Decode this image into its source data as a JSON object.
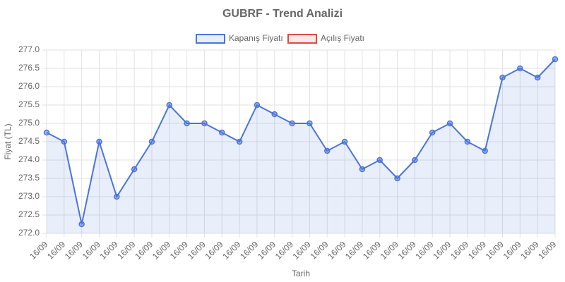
{
  "chart_data": {
    "type": "line",
    "title": "GUBRF - Trend Analizi",
    "x_label": "Tarih",
    "y_label": "Fiyat (TL)",
    "categories": [
      "16/09",
      "16/09",
      "16/09",
      "16/09",
      "16/09",
      "16/09",
      "16/09",
      "16/09",
      "16/09",
      "16/09",
      "16/09",
      "16/09",
      "16/09",
      "16/09",
      "16/09",
      "16/09",
      "16/09",
      "16/09",
      "16/09",
      "16/09",
      "16/09",
      "16/09",
      "16/09",
      "16/09",
      "16/09",
      "16/09",
      "16/09",
      "16/09",
      "16/09",
      "16/09"
    ],
    "series": [
      {
        "name": "Kapanış Fiyatı",
        "color": "#4a74dc",
        "fill": true,
        "values": [
          274.75,
          274.5,
          272.25,
          274.5,
          273.0,
          273.75,
          274.5,
          275.5,
          275.0,
          275.0,
          274.75,
          274.5,
          275.5,
          275.25,
          275.0,
          275.0,
          274.25,
          274.5,
          273.75,
          274.0,
          273.5,
          274.0,
          274.75,
          275.0,
          274.5,
          274.25,
          276.25,
          276.5,
          276.25,
          276.75
        ]
      },
      {
        "name": "Açılış Fiyatı",
        "color": "#e04848",
        "fill": false,
        "values": [
          null,
          null,
          null,
          null,
          null,
          null,
          null,
          null,
          null,
          null,
          null,
          null,
          null,
          null,
          null,
          null,
          null,
          null,
          null,
          null,
          null,
          null,
          null,
          null,
          null,
          null,
          null,
          null,
          null,
          null
        ]
      }
    ],
    "ylim": [
      272.0,
      277.0
    ],
    "yticks": [
      {
        "value": 272.0,
        "label": "272.0"
      },
      {
        "value": 272.5,
        "label": "272.5"
      },
      {
        "value": 273.0,
        "label": "273.0"
      },
      {
        "value": 273.5,
        "label": "273.5"
      },
      {
        "value": 274.0,
        "label": "274.0"
      },
      {
        "value": 274.5,
        "label": "274.5"
      },
      {
        "value": 275.0,
        "label": "275.0"
      },
      {
        "value": 275.5,
        "label": "275.5"
      },
      {
        "value": 276.0,
        "label": "276.0"
      },
      {
        "value": 276.5,
        "label": "276.5"
      },
      {
        "value": 277.0,
        "label": "277.0"
      }
    ],
    "grid": true,
    "legend": "top"
  }
}
